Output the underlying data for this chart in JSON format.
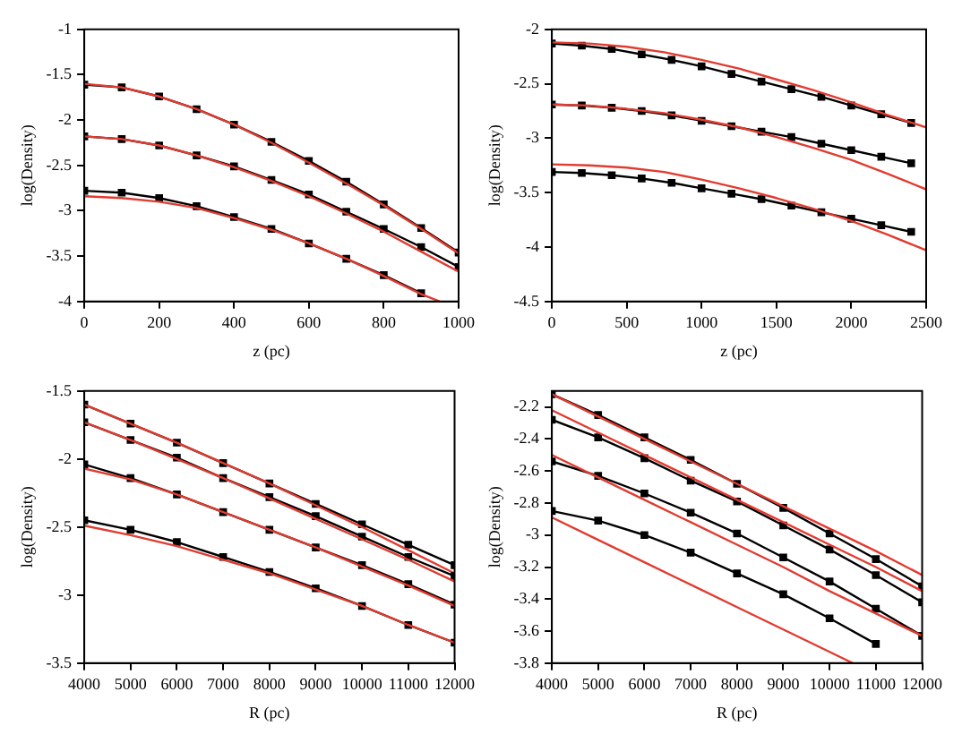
{
  "chart_data": [
    {
      "type": "line",
      "xlabel": "z (pc)",
      "ylabel": "log(Density)",
      "xlim": [
        0,
        1000
      ],
      "xticks": [
        0,
        200,
        400,
        600,
        800,
        1000
      ],
      "ylim": [
        -4,
        -1
      ],
      "yticks": [
        -4,
        -3.5,
        -3,
        -2.5,
        -2,
        -1.5,
        -1
      ],
      "grid": false,
      "legend": false,
      "series": [
        {
          "type": "line",
          "color": "#000000",
          "marker": "square",
          "x": [
            0,
            100,
            200,
            300,
            400,
            500,
            600,
            700,
            800,
            900,
            1000
          ],
          "values": [
            -1.61,
            -1.64,
            -1.74,
            -1.88,
            -2.05,
            -2.24,
            -2.45,
            -2.68,
            -2.93,
            -3.19,
            -3.46
          ]
        },
        {
          "type": "line",
          "color": "#e03c31",
          "marker": "none",
          "x": [
            0,
            100,
            200,
            300,
            400,
            500,
            600,
            700,
            800,
            900,
            1000
          ],
          "values": [
            -1.6,
            -1.64,
            -1.74,
            -1.88,
            -2.05,
            -2.25,
            -2.47,
            -2.7,
            -2.94,
            -3.2,
            -3.47
          ]
        },
        {
          "type": "line",
          "color": "#000000",
          "marker": "square",
          "x": [
            0,
            100,
            200,
            300,
            400,
            500,
            600,
            700,
            800,
            900,
            1000
          ],
          "values": [
            -2.18,
            -2.21,
            -2.28,
            -2.39,
            -2.51,
            -2.66,
            -2.82,
            -3.01,
            -3.2,
            -3.4,
            -3.62
          ]
        },
        {
          "type": "line",
          "color": "#e03c31",
          "marker": "none",
          "x": [
            0,
            100,
            200,
            300,
            400,
            500,
            600,
            700,
            800,
            900,
            1000
          ],
          "values": [
            -2.18,
            -2.21,
            -2.28,
            -2.39,
            -2.52,
            -2.67,
            -2.84,
            -3.03,
            -3.23,
            -3.45,
            -3.67
          ]
        },
        {
          "type": "line",
          "color": "#000000",
          "marker": "square",
          "x": [
            0,
            100,
            200,
            300,
            400,
            500,
            600,
            700,
            800,
            900
          ],
          "values": [
            -2.78,
            -2.8,
            -2.86,
            -2.95,
            -3.07,
            -3.2,
            -3.36,
            -3.53,
            -3.71,
            -3.91
          ]
        },
        {
          "type": "line",
          "color": "#e03c31",
          "marker": "none",
          "x": [
            0,
            100,
            200,
            300,
            400,
            500,
            600,
            700,
            800,
            900,
            950
          ],
          "values": [
            -2.84,
            -2.86,
            -2.9,
            -2.97,
            -3.08,
            -3.21,
            -3.36,
            -3.53,
            -3.72,
            -3.92,
            -4
          ]
        }
      ]
    },
    {
      "type": "line",
      "xlabel": "z (pc)",
      "ylabel": "log(Density)",
      "xlim": [
        0,
        2500
      ],
      "xticks": [
        0,
        500,
        1000,
        1500,
        2000,
        2500
      ],
      "ylim": [
        -4.5,
        -2
      ],
      "yticks": [
        -4.5,
        -4,
        -3.5,
        -3,
        -2.5,
        -2
      ],
      "grid": false,
      "legend": false,
      "series": [
        {
          "type": "line",
          "color": "#000000",
          "marker": "square",
          "x": [
            0,
            200,
            400,
            600,
            800,
            1000,
            1200,
            1400,
            1600,
            1800,
            2000,
            2200,
            2400
          ],
          "values": [
            -2.13,
            -2.15,
            -2.18,
            -2.23,
            -2.28,
            -2.34,
            -2.41,
            -2.48,
            -2.55,
            -2.62,
            -2.7,
            -2.78,
            -2.86
          ]
        },
        {
          "type": "line",
          "color": "#e03c31",
          "marker": "none",
          "x": [
            0,
            250,
            500,
            750,
            1000,
            1250,
            1500,
            1750,
            2000,
            2250,
            2500
          ],
          "values": [
            -2.12,
            -2.13,
            -2.16,
            -2.21,
            -2.28,
            -2.36,
            -2.46,
            -2.56,
            -2.67,
            -2.79,
            -2.9
          ]
        },
        {
          "type": "line",
          "color": "#000000",
          "marker": "square",
          "x": [
            0,
            200,
            400,
            600,
            800,
            1000,
            1200,
            1400,
            1600,
            1800,
            2000,
            2200,
            2400
          ],
          "values": [
            -2.69,
            -2.7,
            -2.72,
            -2.75,
            -2.79,
            -2.84,
            -2.89,
            -2.94,
            -2.99,
            -3.05,
            -3.11,
            -3.17,
            -3.23
          ]
        },
        {
          "type": "line",
          "color": "#e03c31",
          "marker": "none",
          "x": [
            0,
            250,
            500,
            750,
            1000,
            1250,
            1500,
            1750,
            2000,
            2250,
            2500
          ],
          "values": [
            -2.69,
            -2.7,
            -2.73,
            -2.77,
            -2.83,
            -2.9,
            -2.99,
            -3.09,
            -3.2,
            -3.33,
            -3.47
          ]
        },
        {
          "type": "line",
          "color": "#000000",
          "marker": "square",
          "x": [
            0,
            200,
            400,
            600,
            800,
            1000,
            1200,
            1400,
            1600,
            1800,
            2000,
            2200,
            2400
          ],
          "values": [
            -3.31,
            -3.32,
            -3.34,
            -3.37,
            -3.41,
            -3.46,
            -3.51,
            -3.56,
            -3.62,
            -3.68,
            -3.74,
            -3.8,
            -3.86
          ]
        },
        {
          "type": "line",
          "color": "#e03c31",
          "marker": "none",
          "x": [
            0,
            250,
            500,
            750,
            1000,
            1250,
            1500,
            1750,
            2000,
            2250,
            2500
          ],
          "values": [
            -3.24,
            -3.25,
            -3.27,
            -3.31,
            -3.38,
            -3.46,
            -3.55,
            -3.65,
            -3.76,
            -3.89,
            -4.03
          ]
        }
      ]
    },
    {
      "type": "line",
      "xlabel": "R (pc)",
      "ylabel": "log(Density)",
      "xlim": [
        4000,
        12000
      ],
      "xticks": [
        4000,
        5000,
        6000,
        7000,
        8000,
        9000,
        10000,
        11000,
        12000
      ],
      "ylim": [
        -3.5,
        -1.5
      ],
      "yticks": [
        -3.5,
        -3,
        -2.5,
        -2,
        -1.5
      ],
      "grid": false,
      "legend": false,
      "series": [
        {
          "type": "line",
          "color": "#000000",
          "marker": "square",
          "x": [
            4000,
            5000,
            6000,
            7000,
            8000,
            9000,
            10000,
            11000,
            12000
          ],
          "values": [
            -1.6,
            -1.74,
            -1.88,
            -2.03,
            -2.18,
            -2.33,
            -2.48,
            -2.63,
            -2.78
          ]
        },
        {
          "type": "line",
          "color": "#e03c31",
          "marker": "none",
          "x": [
            4000,
            5000,
            6000,
            7000,
            8000,
            9000,
            10000,
            11000,
            12000
          ],
          "values": [
            -1.6,
            -1.74,
            -1.88,
            -2.03,
            -2.18,
            -2.34,
            -2.5,
            -2.67,
            -2.84
          ]
        },
        {
          "type": "line",
          "color": "#000000",
          "marker": "square",
          "x": [
            4000,
            5000,
            6000,
            7000,
            8000,
            9000,
            10000,
            11000,
            12000
          ],
          "values": [
            -1.73,
            -1.86,
            -1.99,
            -2.14,
            -2.28,
            -2.42,
            -2.57,
            -2.72,
            -2.86
          ]
        },
        {
          "type": "line",
          "color": "#e03c31",
          "marker": "none",
          "x": [
            4000,
            5000,
            6000,
            7000,
            8000,
            9000,
            10000,
            11000,
            12000
          ],
          "values": [
            -1.73,
            -1.86,
            -2,
            -2.14,
            -2.29,
            -2.44,
            -2.59,
            -2.74,
            -2.9
          ]
        },
        {
          "type": "line",
          "color": "#000000",
          "marker": "square",
          "x": [
            4000,
            5000,
            6000,
            7000,
            8000,
            9000,
            10000,
            11000,
            12000
          ],
          "values": [
            -2.04,
            -2.14,
            -2.26,
            -2.39,
            -2.52,
            -2.65,
            -2.78,
            -2.92,
            -3.07
          ]
        },
        {
          "type": "line",
          "color": "#e03c31",
          "marker": "none",
          "x": [
            4000,
            5000,
            6000,
            7000,
            8000,
            9000,
            10000,
            11000,
            12000
          ],
          "values": [
            -2.07,
            -2.15,
            -2.26,
            -2.39,
            -2.52,
            -2.65,
            -2.79,
            -2.93,
            -3.08
          ]
        },
        {
          "type": "line",
          "color": "#000000",
          "marker": "square",
          "x": [
            4000,
            5000,
            6000,
            7000,
            8000,
            9000,
            10000,
            11000,
            12000
          ],
          "values": [
            -2.45,
            -2.52,
            -2.61,
            -2.72,
            -2.83,
            -2.95,
            -3.08,
            -3.22,
            -3.35
          ]
        },
        {
          "type": "line",
          "color": "#e03c31",
          "marker": "none",
          "x": [
            4000,
            5000,
            6000,
            7000,
            8000,
            9000,
            10000,
            11000,
            12000
          ],
          "values": [
            -2.49,
            -2.56,
            -2.64,
            -2.74,
            -2.84,
            -2.96,
            -3.08,
            -3.22,
            -3.35
          ]
        }
      ]
    },
    {
      "type": "line",
      "xlabel": "R (pc)",
      "ylabel": "log(Density)",
      "xlim": [
        4000,
        12000
      ],
      "xticks": [
        4000,
        5000,
        6000,
        7000,
        8000,
        9000,
        10000,
        11000,
        12000
      ],
      "ylim": [
        -3.8,
        -2.1
      ],
      "yticks": [
        -3.8,
        -3.6,
        -3.4,
        -3.2,
        -3,
        -2.8,
        -2.6,
        -2.4,
        -2.2
      ],
      "grid": false,
      "legend": false,
      "series": [
        {
          "type": "line",
          "color": "#000000",
          "marker": "square",
          "x": [
            4000,
            5000,
            6000,
            7000,
            8000,
            9000,
            10000,
            11000,
            12000
          ],
          "values": [
            -2.12,
            -2.25,
            -2.39,
            -2.53,
            -2.68,
            -2.83,
            -2.99,
            -3.15,
            -3.32
          ]
        },
        {
          "type": "line",
          "color": "#e03c31",
          "marker": "none",
          "x": [
            4000,
            5000,
            6000,
            7000,
            8000,
            9000,
            10000,
            11000,
            12000
          ],
          "values": [
            -2.12,
            -2.26,
            -2.4,
            -2.54,
            -2.68,
            -2.82,
            -2.96,
            -3.1,
            -3.25
          ]
        },
        {
          "type": "line",
          "color": "#000000",
          "marker": "square",
          "x": [
            4000,
            5000,
            6000,
            7000,
            8000,
            9000,
            10000,
            11000,
            12000
          ],
          "values": [
            -2.28,
            -2.39,
            -2.52,
            -2.66,
            -2.79,
            -2.94,
            -3.09,
            -3.25,
            -3.42
          ]
        },
        {
          "type": "line",
          "color": "#e03c31",
          "marker": "none",
          "x": [
            4000,
            5000,
            6000,
            7000,
            8000,
            9000,
            10000,
            11000,
            12000
          ],
          "values": [
            -2.22,
            -2.36,
            -2.5,
            -2.64,
            -2.78,
            -2.92,
            -3.06,
            -3.2,
            -3.35
          ]
        },
        {
          "type": "line",
          "color": "#000000",
          "marker": "square",
          "x": [
            4000,
            5000,
            6000,
            7000,
            8000,
            9000,
            10000,
            11000,
            12000
          ],
          "values": [
            -2.54,
            -2.63,
            -2.74,
            -2.86,
            -2.99,
            -3.14,
            -3.29,
            -3.46,
            -3.63
          ]
        },
        {
          "type": "line",
          "color": "#e03c31",
          "marker": "none",
          "x": [
            4000,
            5000,
            6000,
            7000,
            8000,
            9000,
            10000,
            11000,
            12000
          ],
          "values": [
            -2.5,
            -2.64,
            -2.78,
            -2.92,
            -3.06,
            -3.2,
            -3.35,
            -3.49,
            -3.63
          ]
        },
        {
          "type": "line",
          "color": "#000000",
          "marker": "square",
          "x": [
            4000,
            5000,
            6000,
            7000,
            8000,
            9000,
            10000,
            11000
          ],
          "values": [
            -2.85,
            -2.91,
            -3,
            -3.11,
            -3.24,
            -3.37,
            -3.52,
            -3.68
          ]
        },
        {
          "type": "line",
          "color": "#e03c31",
          "marker": "none",
          "x": [
            4000,
            5000,
            6000,
            7000,
            8000,
            9000,
            10000,
            10500
          ],
          "values": [
            -2.89,
            -3.03,
            -3.17,
            -3.31,
            -3.45,
            -3.59,
            -3.73,
            -3.8
          ]
        }
      ]
    }
  ]
}
